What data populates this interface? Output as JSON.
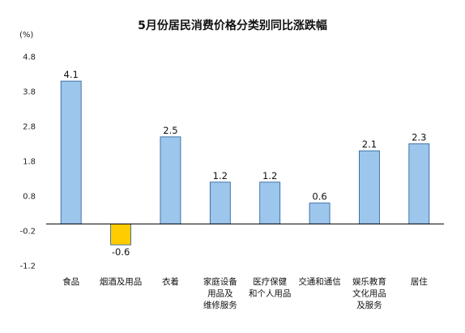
{
  "chart_data": {
    "type": "bar",
    "title": "5月份居民消费价格分类别同比涨跌幅",
    "unit_label": "(%)",
    "ylim": [
      -1.2,
      4.8
    ],
    "yticks": [
      4.8,
      3.8,
      2.8,
      1.8,
      0.8,
      -0.2,
      -1.2
    ],
    "grid": false,
    "legend": "none",
    "categories": [
      [
        "食品"
      ],
      [
        "烟酒及用品"
      ],
      [
        "衣着"
      ],
      [
        "家庭设备",
        "用品及",
        "维修服务"
      ],
      [
        "医疗保健",
        "和个人用品"
      ],
      [
        "交通和通信"
      ],
      [
        "娱乐教育",
        "文化用品",
        "及服务"
      ],
      [
        "居住"
      ]
    ],
    "values": [
      4.1,
      -0.6,
      2.5,
      1.2,
      1.2,
      0.6,
      2.1,
      2.3
    ],
    "colors": {
      "positive": "#9dc6ec",
      "negative": "#ffcc00",
      "bar_stroke": "#1f5b99"
    }
  }
}
